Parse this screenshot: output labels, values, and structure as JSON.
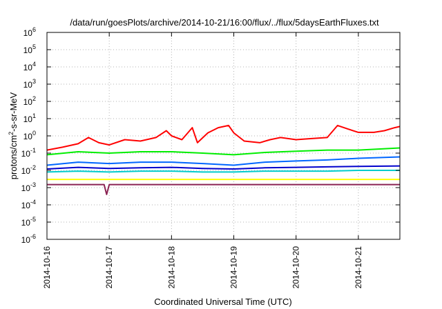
{
  "chart_data": {
    "type": "line",
    "title": "/data/run/goesPlots/archive/2014-10-21/16:00/flux/../flux/5daysEarthFluxes.txt",
    "xlabel": "Coordinated Universal Time (UTC)",
    "ylabel": "protons/cm²-s-sr-MeV",
    "ylabel_parts": {
      "pre": "protons/cm",
      "sup": "2",
      "post": "-s-sr-MeV"
    },
    "x_ticks": [
      "2014-10-16",
      "2014-10-17",
      "2014-10-18",
      "2014-10-19",
      "2014-10-20",
      "2014-10-21"
    ],
    "xlim": [
      "2014-10-16 00:00",
      "2014-10-21 16:00"
    ],
    "y_scale": "log",
    "ylim": [
      1e-06,
      1000000.0
    ],
    "y_ticks": [
      {
        "base": "10",
        "exp": "-6"
      },
      {
        "base": "10",
        "exp": "-5"
      },
      {
        "base": "10",
        "exp": "-4"
      },
      {
        "base": "10",
        "exp": "-3"
      },
      {
        "base": "10",
        "exp": "-2"
      },
      {
        "base": "10",
        "exp": "-1"
      },
      {
        "base": "10",
        "exp": "0"
      },
      {
        "base": "10",
        "exp": "1"
      },
      {
        "base": "10",
        "exp": "2"
      },
      {
        "base": "10",
        "exp": "3"
      },
      {
        "base": "10",
        "exp": "4"
      },
      {
        "base": "10",
        "exp": "5"
      },
      {
        "base": "10",
        "exp": "6"
      }
    ],
    "grid": true,
    "x_days": [
      "2014-10-16",
      "2014-10-16 12:00",
      "2014-10-17",
      "2014-10-17 12:00",
      "2014-10-18",
      "2014-10-18 12:00",
      "2014-10-19",
      "2014-10-19 12:00",
      "2014-10-20",
      "2014-10-20 12:00",
      "2014-10-21",
      "2014-10-21 16:00"
    ],
    "series": [
      {
        "color": "#ff0000",
        "points": [
          [
            "2014-10-16 00:00",
            0.15
          ],
          [
            "2014-10-16 06:00",
            0.22
          ],
          [
            "2014-10-16 12:00",
            0.35
          ],
          [
            "2014-10-16 16:00",
            0.8
          ],
          [
            "2014-10-16 20:00",
            0.4
          ],
          [
            "2014-10-17 00:00",
            0.3
          ],
          [
            "2014-10-17 06:00",
            0.6
          ],
          [
            "2014-10-17 12:00",
            0.5
          ],
          [
            "2014-10-17 18:00",
            0.8
          ],
          [
            "2014-10-17 22:00",
            2.0
          ],
          [
            "2014-10-18 00:00",
            1.0
          ],
          [
            "2014-10-18 04:00",
            0.6
          ],
          [
            "2014-10-18 08:00",
            3.0
          ],
          [
            "2014-10-18 10:00",
            0.4
          ],
          [
            "2014-10-18 14:00",
            1.5
          ],
          [
            "2014-10-18 18:00",
            3.0
          ],
          [
            "2014-10-18 22:00",
            4.0
          ],
          [
            "2014-10-19 00:00",
            1.5
          ],
          [
            "2014-10-19 04:00",
            0.5
          ],
          [
            "2014-10-19 10:00",
            0.4
          ],
          [
            "2014-10-19 14:00",
            0.6
          ],
          [
            "2014-10-19 18:00",
            0.8
          ],
          [
            "2014-10-20 00:00",
            0.6
          ],
          [
            "2014-10-20 06:00",
            0.7
          ],
          [
            "2014-10-20 12:00",
            0.8
          ],
          [
            "2014-10-20 16:00",
            4.0
          ],
          [
            "2014-10-20 20:00",
            2.5
          ],
          [
            "2014-10-21 00:00",
            1.6
          ],
          [
            "2014-10-21 06:00",
            1.6
          ],
          [
            "2014-10-21 10:00",
            2.0
          ],
          [
            "2014-10-21 14:00",
            3.0
          ],
          [
            "2014-10-21 16:00",
            3.5
          ]
        ]
      },
      {
        "color": "#00ee00",
        "points": [
          [
            "2014-10-16 00:00",
            0.08
          ],
          [
            "2014-10-16 12:00",
            0.12
          ],
          [
            "2014-10-17 00:00",
            0.1
          ],
          [
            "2014-10-17 12:00",
            0.12
          ],
          [
            "2014-10-18 00:00",
            0.12
          ],
          [
            "2014-10-18 12:00",
            0.1
          ],
          [
            "2014-10-19 00:00",
            0.08
          ],
          [
            "2014-10-19 12:00",
            0.11
          ],
          [
            "2014-10-20 00:00",
            0.13
          ],
          [
            "2014-10-20 12:00",
            0.15
          ],
          [
            "2014-10-21 00:00",
            0.15
          ],
          [
            "2014-10-21 16:00",
            0.2
          ]
        ]
      },
      {
        "color": "#0066ff",
        "points": [
          [
            "2014-10-16 00:00",
            0.02
          ],
          [
            "2014-10-16 12:00",
            0.03
          ],
          [
            "2014-10-17 00:00",
            0.025
          ],
          [
            "2014-10-17 12:00",
            0.03
          ],
          [
            "2014-10-18 00:00",
            0.03
          ],
          [
            "2014-10-18 12:00",
            0.025
          ],
          [
            "2014-10-19 00:00",
            0.02
          ],
          [
            "2014-10-19 12:00",
            0.03
          ],
          [
            "2014-10-20 00:00",
            0.035
          ],
          [
            "2014-10-20 12:00",
            0.04
          ],
          [
            "2014-10-21 00:00",
            0.05
          ],
          [
            "2014-10-21 16:00",
            0.06
          ]
        ]
      },
      {
        "color": "#0000cc",
        "points": [
          [
            "2014-10-16 00:00",
            0.012
          ],
          [
            "2014-10-16 12:00",
            0.015
          ],
          [
            "2014-10-17 00:00",
            0.013
          ],
          [
            "2014-10-17 12:00",
            0.014
          ],
          [
            "2014-10-18 00:00",
            0.015
          ],
          [
            "2014-10-18 12:00",
            0.013
          ],
          [
            "2014-10-19 00:00",
            0.012
          ],
          [
            "2014-10-19 12:00",
            0.014
          ],
          [
            "2014-10-20 00:00",
            0.015
          ],
          [
            "2014-10-20 12:00",
            0.016
          ],
          [
            "2014-10-21 00:00",
            0.017
          ],
          [
            "2014-10-21 16:00",
            0.018
          ]
        ]
      },
      {
        "color": "#00cccc",
        "points": [
          [
            "2014-10-16 00:00",
            0.008
          ],
          [
            "2014-10-16 12:00",
            0.009
          ],
          [
            "2014-10-17 00:00",
            0.008
          ],
          [
            "2014-10-17 12:00",
            0.009
          ],
          [
            "2014-10-18 00:00",
            0.009
          ],
          [
            "2014-10-18 12:00",
            0.008
          ],
          [
            "2014-10-19 00:00",
            0.008
          ],
          [
            "2014-10-19 12:00",
            0.009
          ],
          [
            "2014-10-20 00:00",
            0.009
          ],
          [
            "2014-10-20 12:00",
            0.009
          ],
          [
            "2014-10-21 00:00",
            0.01
          ],
          [
            "2014-10-21 16:00",
            0.01
          ]
        ]
      },
      {
        "color": "#ffff00",
        "points": [
          [
            "2014-10-16 00:00",
            0.003
          ],
          [
            "2014-10-16 12:00",
            0.003
          ],
          [
            "2014-10-17 00:00",
            0.003
          ],
          [
            "2014-10-17 12:00",
            0.003
          ],
          [
            "2014-10-18 00:00",
            0.003
          ],
          [
            "2014-10-18 12:00",
            0.003
          ],
          [
            "2014-10-19 00:00",
            0.003
          ],
          [
            "2014-10-19 12:00",
            0.003
          ],
          [
            "2014-10-20 00:00",
            0.003
          ],
          [
            "2014-10-20 12:00",
            0.003
          ],
          [
            "2014-10-21 00:00",
            0.003
          ],
          [
            "2014-10-21 16:00",
            0.003
          ]
        ]
      },
      {
        "color": "#8b2252",
        "points": [
          [
            "2014-10-16 00:00",
            0.0015
          ],
          [
            "2014-10-16 12:00",
            0.0015
          ],
          [
            "2014-10-16 22:00",
            0.0015
          ],
          [
            "2014-10-16 23:00",
            0.0004
          ],
          [
            "2014-10-17 00:00",
            0.0015
          ],
          [
            "2014-10-17 12:00",
            0.0015
          ],
          [
            "2014-10-18 00:00",
            0.0015
          ],
          [
            "2014-10-18 12:00",
            0.0015
          ],
          [
            "2014-10-19 00:00",
            0.0015
          ],
          [
            "2014-10-19 12:00",
            0.0015
          ],
          [
            "2014-10-20 00:00",
            0.0015
          ],
          [
            "2014-10-20 12:00",
            0.0015
          ],
          [
            "2014-10-21 00:00",
            0.0015
          ],
          [
            "2014-10-21 16:00",
            0.0015
          ]
        ]
      }
    ]
  }
}
